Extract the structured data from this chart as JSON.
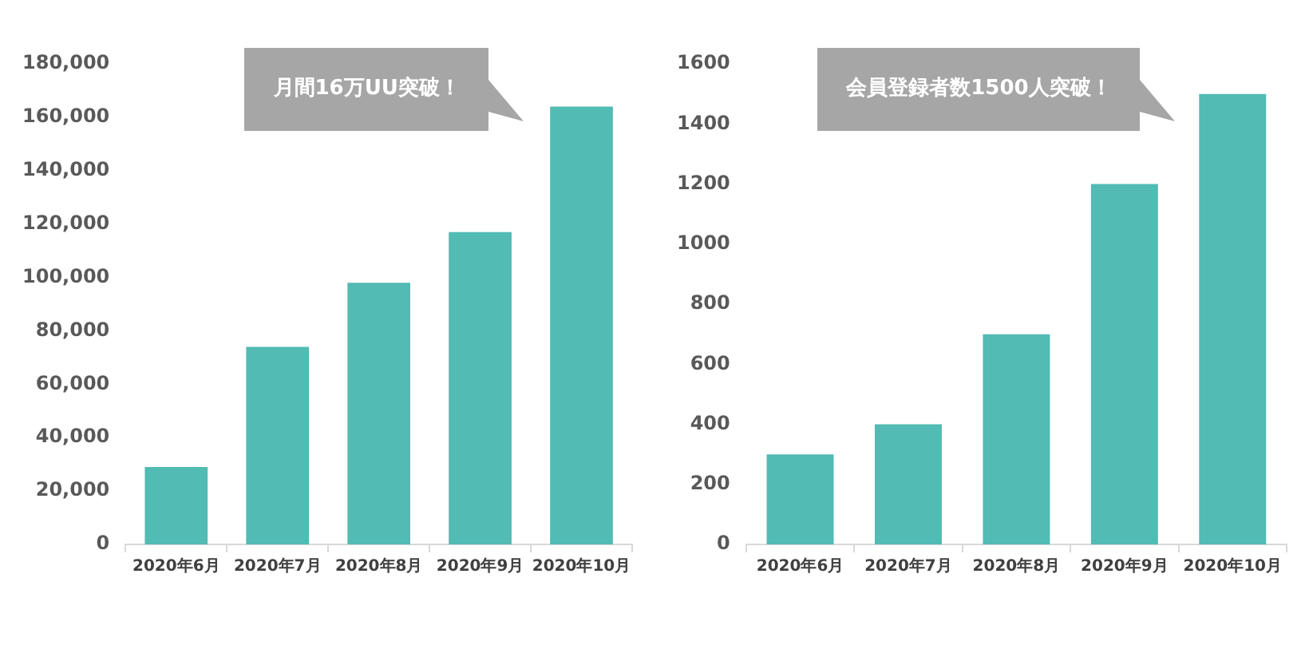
{
  "chart_data": [
    {
      "type": "bar",
      "categories": [
        "2020年6月",
        "2020年7月",
        "2020年8月",
        "2020年9月",
        "2020年10月"
      ],
      "values": [
        29000,
        74000,
        98000,
        117000,
        164000
      ],
      "color": "#52bbb3",
      "ylim": [
        0,
        180000
      ],
      "yticks": [
        {
          "value": 0,
          "label": "0"
        },
        {
          "value": 20000,
          "label": "20,000"
        },
        {
          "value": 40000,
          "label": "40,000"
        },
        {
          "value": 60000,
          "label": "60,000"
        },
        {
          "value": 80000,
          "label": "80,000"
        },
        {
          "value": 100000,
          "label": "100,000"
        },
        {
          "value": 120000,
          "label": "120,000"
        },
        {
          "value": 140000,
          "label": "140,000"
        },
        {
          "value": 160000,
          "label": "160,000"
        },
        {
          "value": 180000,
          "label": "180,000"
        }
      ],
      "grid": false,
      "legend": false,
      "annotations": [
        "月間16万UU突破！"
      ]
    },
    {
      "type": "bar",
      "categories": [
        "2020年6月",
        "2020年7月",
        "2020年8月",
        "2020年9月",
        "2020年10月"
      ],
      "values": [
        300,
        400,
        700,
        1200,
        1500
      ],
      "color": "#52bbb3",
      "ylim": [
        0,
        1600
      ],
      "yticks": [
        0,
        200,
        400,
        600,
        800,
        1000,
        1200,
        1400,
        1600
      ],
      "grid": false,
      "legend": false,
      "annotations": [
        "会員登録者数1500人突破！"
      ]
    }
  ]
}
